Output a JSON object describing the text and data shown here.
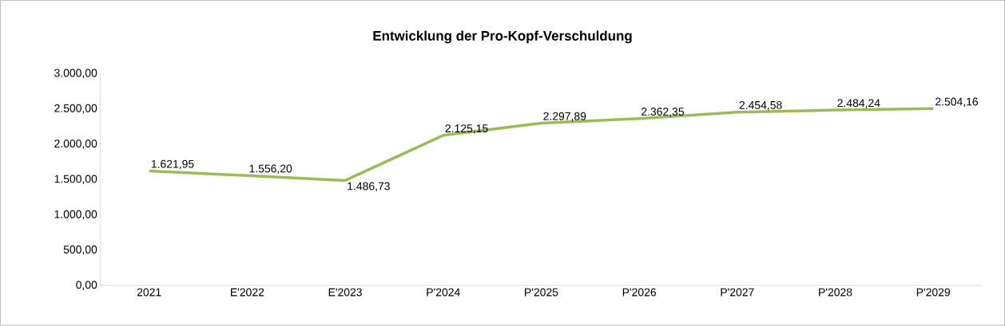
{
  "chart_data": {
    "type": "line",
    "title": "Entwicklung der Pro-Kopf-Verschuldung",
    "categories": [
      "2021",
      "E'2022",
      "E'2023",
      "P'2024",
      "P'2025",
      "P'2026",
      "P'2027",
      "P'2028",
      "P'2029"
    ],
    "values": [
      1621.95,
      1556.2,
      1486.73,
      2125.15,
      2297.89,
      2362.35,
      2454.58,
      2484.24,
      2504.16
    ],
    "value_labels": [
      "1.621,95",
      "1.556,20",
      "1.486,73",
      "2.125,15",
      "2.297,89",
      "2.362,35",
      "2.454,58",
      "2.484,24",
      "2.504,16"
    ],
    "color": "#9bbb59",
    "ylim": [
      0,
      3000
    ],
    "yticks": [
      {
        "value": 0,
        "label": "0,00"
      },
      {
        "value": 500,
        "label": "500,00"
      },
      {
        "value": 1000,
        "label": "1.000,00"
      },
      {
        "value": 1500,
        "label": "1.500,00"
      },
      {
        "value": 2000,
        "label": "2.000,00"
      },
      {
        "value": 2500,
        "label": "2.500,00"
      },
      {
        "value": 3000,
        "label": "3.000,00"
      }
    ],
    "grid": false,
    "marker": "none",
    "line_style": "solid"
  }
}
